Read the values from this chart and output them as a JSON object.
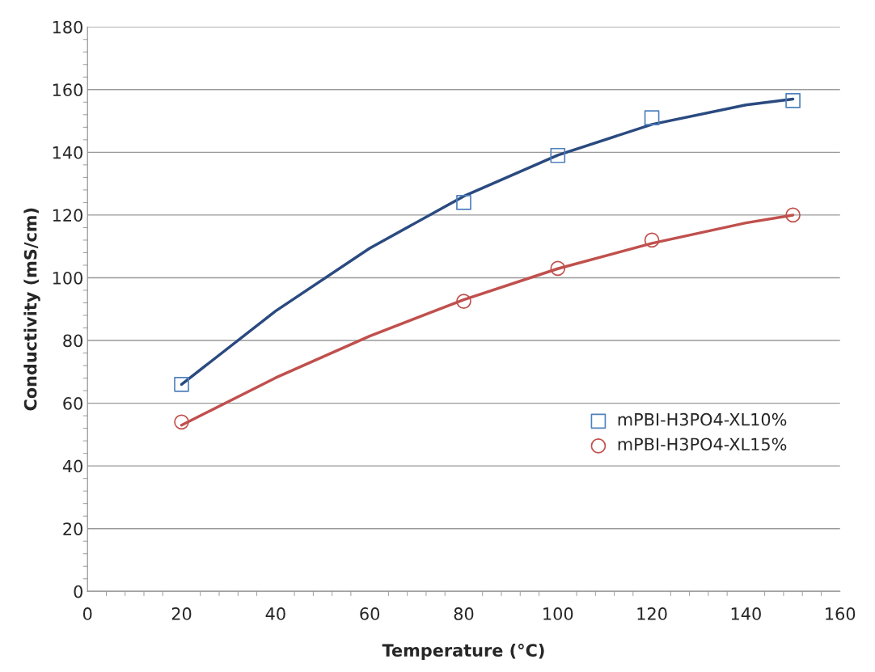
{
  "chart_data": {
    "type": "scatter",
    "xlabel": "Temperature (°C)",
    "ylabel": "Conductivity (mS/cm)",
    "xlim": [
      0,
      160
    ],
    "ylim": [
      0,
      180
    ],
    "xticks": [
      0,
      20,
      40,
      60,
      80,
      100,
      120,
      140,
      160
    ],
    "yticks": [
      0,
      20,
      40,
      60,
      80,
      100,
      120,
      140,
      160,
      180
    ],
    "grid": "y",
    "legend": "right",
    "series": [
      {
        "name": "mPBI-H3PO4-XL10%",
        "marker": "square",
        "color": "#4f81bd",
        "x": [
          20,
          80,
          100,
          120,
          150
        ],
        "values": [
          66,
          124,
          139,
          151,
          156.5
        ]
      },
      {
        "name": "mPBI-H3PO4-XL15%",
        "marker": "circle",
        "color": "#c0504d",
        "x": [
          20,
          80,
          100,
          120,
          150
        ],
        "values": [
          54,
          92.5,
          103,
          112,
          120
        ]
      },
      {
        "type": "line",
        "color": "#2a4a80",
        "x": [
          20,
          40,
          60,
          80,
          100,
          120,
          140,
          150
        ],
        "values": [
          66,
          89.4,
          109.4,
          126,
          139.1,
          148.9,
          155.1,
          157
        ]
      },
      {
        "type": "line",
        "color": "#c0504d",
        "x": [
          20,
          40,
          60,
          80,
          100,
          120,
          140,
          150
        ],
        "values": [
          53,
          68.1,
          81.4,
          93,
          102.9,
          111,
          117.5,
          120
        ]
      }
    ]
  }
}
